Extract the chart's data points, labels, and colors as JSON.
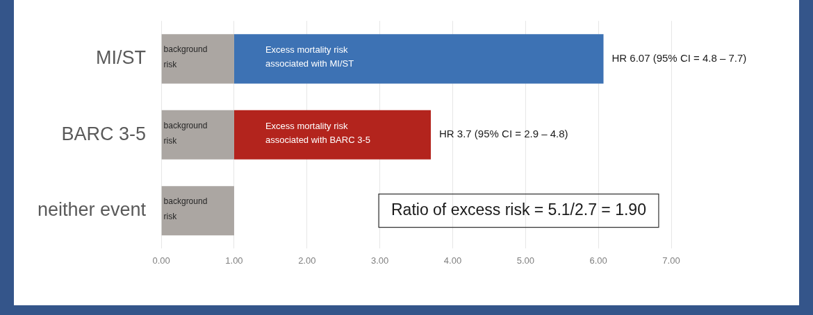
{
  "chart_data": {
    "type": "bar",
    "orientation": "horizontal",
    "stacked": true,
    "categories": [
      "MI/ST",
      "BARC 3-5",
      "neither event"
    ],
    "series": [
      {
        "color": "#aba6a2",
        "values": [
          1,
          1,
          1
        ],
        "value_labels": [
          "background\nrisk",
          "background\nrisk",
          "background\nrisk"
        ]
      },
      {
        "colors": [
          "#3d72b4",
          "#b3241d",
          null
        ],
        "values": [
          5.07,
          2.7,
          null
        ],
        "value_labels": [
          "Excess mortality risk\nassociated with MI/ST",
          "Excess mortality risk\nassociated with BARC 3-5",
          null
        ]
      }
    ],
    "xlim": [
      0,
      7
    ],
    "xticks": [
      {
        "value": 0,
        "label": "0.00"
      },
      {
        "value": 1,
        "label": "1.00"
      },
      {
        "value": 2,
        "label": "2.00"
      },
      {
        "value": 3,
        "label": "3.00"
      },
      {
        "value": 4,
        "label": "4.00"
      },
      {
        "value": 5,
        "label": "5.00"
      },
      {
        "value": 6,
        "label": "6.00"
      },
      {
        "value": 7,
        "label": "7.00"
      }
    ],
    "grid": "x",
    "legend": false,
    "annotations": [
      {
        "text": "HR 6.07 (95% CI = 4.8 – 7.7)",
        "x": 6.07,
        "y": "MI/ST"
      },
      {
        "text": "HR 3.7 (95% CI = 2.9 – 4.8)",
        "x": 3.7,
        "y": "BARC 3-5"
      },
      "Ratio of excess risk = 5.1/2.7 = 1.90"
    ]
  }
}
